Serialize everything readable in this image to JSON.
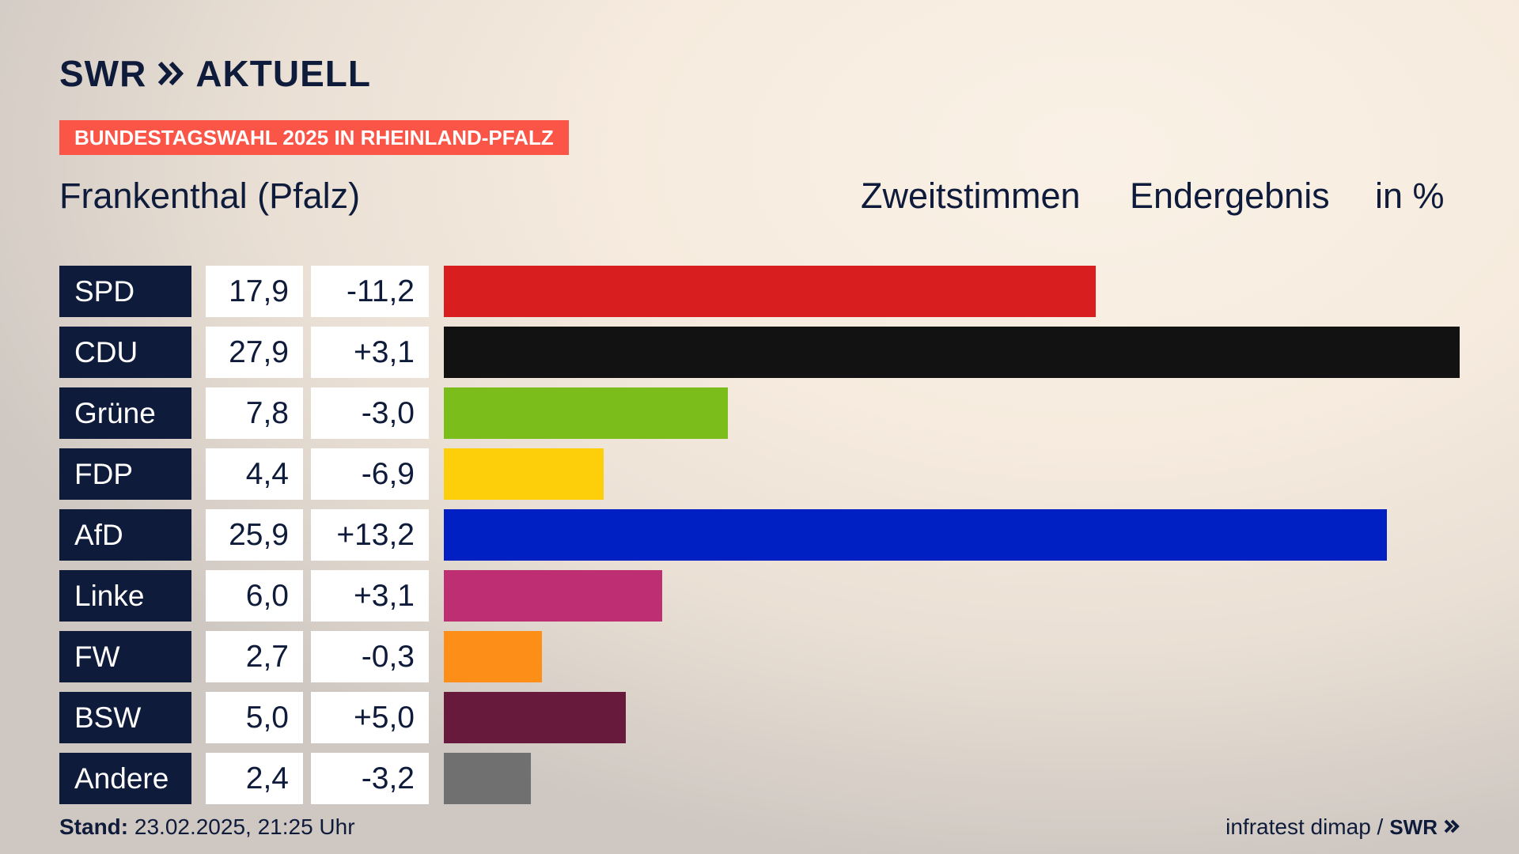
{
  "brand": {
    "swr": "SWR",
    "aktuell": "AKTUELL"
  },
  "banner": "BUNDESTAGSWAHL 2025 IN RHEINLAND-PFALZ",
  "region": "Frankenthal (Pfalz)",
  "header": {
    "vote_type": "Zweitstimmen",
    "result_type": "Endergebnis",
    "unit": "in %"
  },
  "colors": {
    "navy": "#0f1b3a",
    "banner": "#fb5548"
  },
  "chart_data": {
    "type": "bar",
    "orientation": "horizontal",
    "categories": [
      "SPD",
      "CDU",
      "Grüne",
      "FDP",
      "AfD",
      "Linke",
      "FW",
      "BSW",
      "Andere"
    ],
    "values": [
      17.9,
      27.9,
      7.8,
      4.4,
      25.9,
      6.0,
      2.7,
      5.0,
      2.4
    ],
    "value_labels": [
      "17,9",
      "27,9",
      "7,8",
      "4,4",
      "25,9",
      "6,0",
      "2,7",
      "5,0",
      "2,4"
    ],
    "change_labels": [
      "-11,2",
      "+3,1",
      "-3,0",
      "-6,9",
      "+13,2",
      "+3,1",
      "-0,3",
      "+5,0",
      "-3,2"
    ],
    "changes": [
      -11.2,
      3.1,
      -3.0,
      -6.9,
      13.2,
      3.1,
      -0.3,
      5.0,
      -3.2
    ],
    "bar_colors": [
      "#d81e1e",
      "#121212",
      "#7bbd1b",
      "#fdcf0a",
      "#0020c3",
      "#bd2f72",
      "#fd8e17",
      "#671a3c",
      "#707071"
    ],
    "value_max": 27.9
  },
  "footer": {
    "stand_label": "Stand:",
    "stand_value": "23.02.2025, 21:25 Uhr",
    "source": "infratest dimap /",
    "swr": "SWR"
  }
}
